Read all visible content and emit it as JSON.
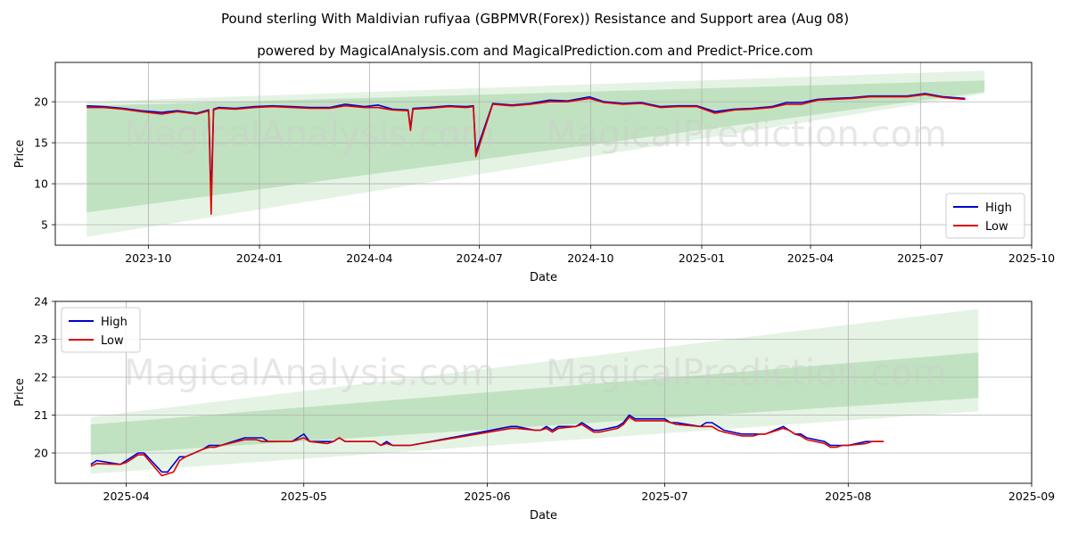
{
  "title": "Pound sterling With Maldivian rufiyaa (GBPMVR(Forex)) Resistance and Support area (Aug 08)",
  "subtitle": "powered by MagicalAnalysis.com and MagicalPrediction.com and Predict-Price.com",
  "watermarks": [
    "MagicalAnalysis.com",
    "MagicalPrediction.com"
  ],
  "colors": {
    "high": "#0000cc",
    "low": "#dd0000",
    "band": "#2ca02c",
    "grid": "#b0b0b0"
  },
  "chart_data": [
    {
      "type": "line",
      "xlabel": "Date",
      "ylabel": "Price",
      "x_ticks": [
        "2023-10",
        "2024-01",
        "2024-04",
        "2024-07",
        "2024-10",
        "2025-01",
        "2025-04",
        "2025-07",
        "2025-10"
      ],
      "y_ticks": [
        "5",
        "10",
        "15",
        "20"
      ],
      "xlim": [
        "2023-07-16",
        "2025-10-01"
      ],
      "ylim": [
        2.5,
        24.8
      ],
      "legend": "lower-right",
      "grid": true,
      "legend_labels": [
        "High",
        "Low"
      ],
      "series": [
        {
          "name": "High",
          "x": [
            "2023-08-11",
            "2023-08-25",
            "2023-09-10",
            "2023-09-25",
            "2023-10-12",
            "2023-10-25",
            "2023-11-10",
            "2023-11-20",
            "2023-11-22",
            "2023-11-24",
            "2023-11-28",
            "2023-12-12",
            "2023-12-28",
            "2024-01-12",
            "2024-01-28",
            "2024-02-12",
            "2024-02-28",
            "2024-03-12",
            "2024-03-28",
            "2024-04-08",
            "2024-04-20",
            "2024-05-03",
            "2024-05-05",
            "2024-05-07",
            "2024-05-20",
            "2024-06-06",
            "2024-06-20",
            "2024-06-26",
            "2024-06-28",
            "2024-07-12",
            "2024-07-28",
            "2024-08-12",
            "2024-08-28",
            "2024-09-12",
            "2024-09-30",
            "2024-10-12",
            "2024-10-28",
            "2024-11-12",
            "2024-11-28",
            "2024-12-12",
            "2024-12-28",
            "2025-01-12",
            "2025-01-28",
            "2025-02-12",
            "2025-02-28",
            "2025-03-12",
            "2025-03-25",
            "2025-04-07",
            "2025-04-20",
            "2025-05-05",
            "2025-05-20",
            "2025-06-05",
            "2025-06-20",
            "2025-07-05",
            "2025-07-20",
            "2025-08-07"
          ],
          "values": [
            19.5,
            19.4,
            19.2,
            18.9,
            18.7,
            18.9,
            18.6,
            19.0,
            8.0,
            19.1,
            19.3,
            19.2,
            19.4,
            19.5,
            19.4,
            19.3,
            19.3,
            19.7,
            19.4,
            19.6,
            19.1,
            19.0,
            16.8,
            19.2,
            19.3,
            19.5,
            19.4,
            19.5,
            13.8,
            19.8,
            19.6,
            19.8,
            20.2,
            20.1,
            20.6,
            20.0,
            19.8,
            19.9,
            19.4,
            19.5,
            19.5,
            18.8,
            19.1,
            19.2,
            19.4,
            19.9,
            19.9,
            20.3,
            20.4,
            20.5,
            20.7,
            20.7,
            20.7,
            21.0,
            20.6,
            20.4
          ]
        },
        {
          "name": "Low",
          "x": [
            "2023-08-11",
            "2023-08-25",
            "2023-09-10",
            "2023-09-25",
            "2023-10-12",
            "2023-10-25",
            "2023-11-10",
            "2023-11-20",
            "2023-11-22",
            "2023-11-24",
            "2023-11-28",
            "2023-12-12",
            "2023-12-28",
            "2024-01-12",
            "2024-01-28",
            "2024-02-12",
            "2024-02-28",
            "2024-03-12",
            "2024-03-28",
            "2024-04-08",
            "2024-04-20",
            "2024-05-03",
            "2024-05-05",
            "2024-05-07",
            "2024-05-20",
            "2024-06-06",
            "2024-06-20",
            "2024-06-26",
            "2024-06-28",
            "2024-07-12",
            "2024-07-28",
            "2024-08-12",
            "2024-08-28",
            "2024-09-12",
            "2024-09-30",
            "2024-10-12",
            "2024-10-28",
            "2024-11-12",
            "2024-11-28",
            "2024-12-12",
            "2024-12-28",
            "2025-01-12",
            "2025-01-28",
            "2025-02-12",
            "2025-02-28",
            "2025-03-12",
            "2025-03-25",
            "2025-04-07",
            "2025-04-20",
            "2025-05-05",
            "2025-05-20",
            "2025-06-05",
            "2025-06-20",
            "2025-07-05",
            "2025-07-20",
            "2025-08-07"
          ],
          "values": [
            19.3,
            19.3,
            19.1,
            18.8,
            18.5,
            18.8,
            18.5,
            18.9,
            6.3,
            19.0,
            19.2,
            19.1,
            19.3,
            19.4,
            19.3,
            19.2,
            19.2,
            19.5,
            19.3,
            19.3,
            19.0,
            18.9,
            16.5,
            19.1,
            19.2,
            19.4,
            19.3,
            19.4,
            13.3,
            19.7,
            19.5,
            19.7,
            20.0,
            20.0,
            20.4,
            19.9,
            19.7,
            19.8,
            19.3,
            19.4,
            19.4,
            18.6,
            19.0,
            19.1,
            19.3,
            19.7,
            19.7,
            20.2,
            20.3,
            20.4,
            20.6,
            20.6,
            20.6,
            20.9,
            20.5,
            20.3
          ]
        }
      ],
      "bands": [
        {
          "x": [
            "2023-08-11",
            "2025-08-23"
          ],
          "lower": [
            6.5,
            21.2
          ],
          "upper": [
            19.5,
            22.6
          ]
        },
        {
          "x": [
            "2023-08-11",
            "2025-08-23"
          ],
          "lower": [
            3.5,
            21.0
          ],
          "upper": [
            20.0,
            23.8
          ]
        }
      ]
    },
    {
      "type": "line",
      "xlabel": "Date",
      "ylabel": "Price",
      "x_ticks": [
        "2025-04",
        "2025-05",
        "2025-06",
        "2025-07",
        "2025-08",
        "2025-09"
      ],
      "y_ticks": [
        "20",
        "21",
        "22",
        "23",
        "24"
      ],
      "xlim": [
        "2025-03-20",
        "2025-09-01"
      ],
      "ylim": [
        19.2,
        24.0
      ],
      "legend": "top-left",
      "grid": true,
      "legend_labels": [
        "High",
        "Low"
      ],
      "series": [
        {
          "name": "High",
          "x": [
            "2025-03-26",
            "2025-03-27",
            "2025-03-31",
            "2025-04-01",
            "2025-04-02",
            "2025-04-03",
            "2025-04-04",
            "2025-04-07",
            "2025-04-08",
            "2025-04-09",
            "2025-04-10",
            "2025-04-11",
            "2025-04-14",
            "2025-04-15",
            "2025-04-16",
            "2025-04-17",
            "2025-04-21",
            "2025-04-22",
            "2025-04-23",
            "2025-04-24",
            "2025-04-25",
            "2025-04-28",
            "2025-04-29",
            "2025-04-30",
            "2025-05-01",
            "2025-05-02",
            "2025-05-05",
            "2025-05-06",
            "2025-05-07",
            "2025-05-08",
            "2025-05-09",
            "2025-05-12",
            "2025-05-13",
            "2025-05-14",
            "2025-05-15",
            "2025-05-16",
            "2025-05-19",
            "2025-06-05",
            "2025-06-06",
            "2025-06-09",
            "2025-06-10",
            "2025-06-11",
            "2025-06-12",
            "2025-06-13",
            "2025-06-16",
            "2025-06-17",
            "2025-06-18",
            "2025-06-19",
            "2025-06-20",
            "2025-06-23",
            "2025-06-24",
            "2025-06-25",
            "2025-06-26",
            "2025-06-27",
            "2025-06-30",
            "2025-07-01",
            "2025-07-02",
            "2025-07-03",
            "2025-07-07",
            "2025-07-08",
            "2025-07-09",
            "2025-07-10",
            "2025-07-11",
            "2025-07-14",
            "2025-07-15",
            "2025-07-16",
            "2025-07-17",
            "2025-07-18",
            "2025-07-21",
            "2025-07-22",
            "2025-07-23",
            "2025-07-24",
            "2025-07-25",
            "2025-07-28",
            "2025-07-29",
            "2025-07-30",
            "2025-07-31",
            "2025-08-01",
            "2025-08-04",
            "2025-08-05",
            "2025-08-06",
            "2025-08-07"
          ],
          "values": [
            19.7,
            19.8,
            19.7,
            19.8,
            19.9,
            20.0,
            20.0,
            19.5,
            19.5,
            19.7,
            19.9,
            19.9,
            20.1,
            20.2,
            20.2,
            20.2,
            20.4,
            20.4,
            20.4,
            20.4,
            20.3,
            20.3,
            20.3,
            20.4,
            20.5,
            20.3,
            20.3,
            20.3,
            20.4,
            20.3,
            20.3,
            20.3,
            20.3,
            20.2,
            20.3,
            20.2,
            20.2,
            20.7,
            20.7,
            20.6,
            20.6,
            20.7,
            20.6,
            20.7,
            20.7,
            20.8,
            20.7,
            20.6,
            20.6,
            20.7,
            20.8,
            21.0,
            20.9,
            20.9,
            20.9,
            20.9,
            20.8,
            20.8,
            20.7,
            20.8,
            20.8,
            20.7,
            20.6,
            20.5,
            20.5,
            20.5,
            20.5,
            20.5,
            20.7,
            20.6,
            20.5,
            20.5,
            20.4,
            20.3,
            20.2,
            20.2,
            20.2,
            20.2,
            20.3,
            20.3,
            20.3,
            20.3
          ]
        },
        {
          "name": "Low",
          "x": [
            "2025-03-26",
            "2025-03-27",
            "2025-03-31",
            "2025-04-01",
            "2025-04-02",
            "2025-04-03",
            "2025-04-04",
            "2025-04-07",
            "2025-04-08",
            "2025-04-09",
            "2025-04-10",
            "2025-04-11",
            "2025-04-14",
            "2025-04-15",
            "2025-04-16",
            "2025-04-17",
            "2025-04-21",
            "2025-04-22",
            "2025-04-23",
            "2025-04-24",
            "2025-04-25",
            "2025-04-28",
            "2025-04-29",
            "2025-04-30",
            "2025-05-01",
            "2025-05-02",
            "2025-05-05",
            "2025-05-06",
            "2025-05-07",
            "2025-05-08",
            "2025-05-09",
            "2025-05-12",
            "2025-05-13",
            "2025-05-14",
            "2025-05-15",
            "2025-05-16",
            "2025-05-19",
            "2025-06-05",
            "2025-06-06",
            "2025-06-09",
            "2025-06-10",
            "2025-06-11",
            "2025-06-12",
            "2025-06-13",
            "2025-06-16",
            "2025-06-17",
            "2025-06-18",
            "2025-06-19",
            "2025-06-20",
            "2025-06-23",
            "2025-06-24",
            "2025-06-25",
            "2025-06-26",
            "2025-06-27",
            "2025-06-30",
            "2025-07-01",
            "2025-07-02",
            "2025-07-03",
            "2025-07-07",
            "2025-07-08",
            "2025-07-09",
            "2025-07-10",
            "2025-07-11",
            "2025-07-14",
            "2025-07-15",
            "2025-07-16",
            "2025-07-17",
            "2025-07-18",
            "2025-07-21",
            "2025-07-22",
            "2025-07-23",
            "2025-07-24",
            "2025-07-25",
            "2025-07-28",
            "2025-07-29",
            "2025-07-30",
            "2025-07-31",
            "2025-08-01",
            "2025-08-04",
            "2025-08-05",
            "2025-08-06",
            "2025-08-07"
          ],
          "values": [
            19.65,
            19.72,
            19.7,
            19.75,
            19.85,
            19.95,
            19.95,
            19.4,
            19.45,
            19.5,
            19.8,
            19.9,
            20.1,
            20.15,
            20.15,
            20.2,
            20.35,
            20.35,
            20.35,
            20.3,
            20.3,
            20.3,
            20.3,
            20.35,
            20.4,
            20.3,
            20.25,
            20.3,
            20.4,
            20.3,
            20.3,
            20.3,
            20.3,
            20.2,
            20.25,
            20.2,
            20.2,
            20.65,
            20.65,
            20.6,
            20.6,
            20.65,
            20.55,
            20.65,
            20.7,
            20.75,
            20.65,
            20.55,
            20.55,
            20.65,
            20.75,
            20.95,
            20.85,
            20.85,
            20.85,
            20.85,
            20.8,
            20.75,
            20.7,
            20.7,
            20.7,
            20.6,
            20.55,
            20.45,
            20.45,
            20.45,
            20.5,
            20.5,
            20.65,
            20.6,
            20.5,
            20.45,
            20.35,
            20.25,
            20.15,
            20.15,
            20.2,
            20.2,
            20.25,
            20.3,
            20.3,
            20.3
          ]
        }
      ],
      "bands": [
        {
          "x": [
            "2025-03-26",
            "2025-08-23"
          ],
          "lower": [
            19.95,
            21.45
          ],
          "upper": [
            20.75,
            22.65
          ]
        },
        {
          "x": [
            "2025-03-26",
            "2025-08-23"
          ],
          "lower": [
            19.45,
            21.1
          ],
          "upper": [
            20.95,
            23.8
          ]
        }
      ]
    }
  ]
}
